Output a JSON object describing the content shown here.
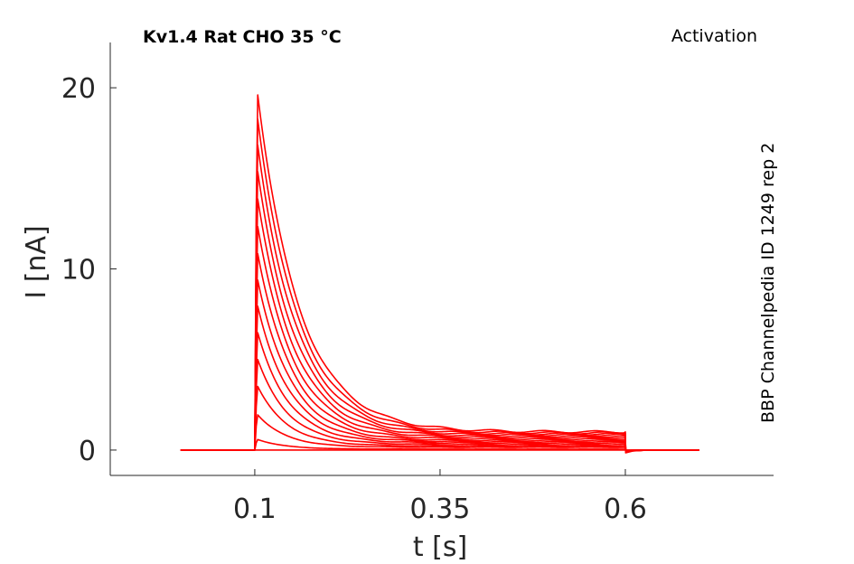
{
  "chart_data": {
    "type": "line",
    "title": "Kv1.4  Rat  CHO  35 °C",
    "protocol_label": "Activation",
    "side_label": "BBP Channelpedia ID 1249 rep 2",
    "xlabel": "t [s]",
    "ylabel": "I [nA]",
    "xlim": [
      -0.095,
      0.8
    ],
    "ylim": [
      -1.4,
      22.5
    ],
    "xticks": [
      0.1,
      0.35,
      0.6
    ],
    "xtick_labels": [
      "0.1",
      "0.35",
      "0.6"
    ],
    "yticks": [
      0,
      10,
      20
    ],
    "ytick_labels": [
      "0",
      "10",
      "20"
    ],
    "grid": false,
    "line_color": "#ff0000",
    "pulse_start": 0.1,
    "pulse_end": 0.6,
    "trace_end": 0.7,
    "series": [
      {
        "peak": 0.6,
        "sustained": 0.05
      },
      {
        "peak": 2.0,
        "sustained": 0.15
      },
      {
        "peak": 3.6,
        "sustained": 0.22
      },
      {
        "peak": 5.1,
        "sustained": 0.3
      },
      {
        "peak": 6.6,
        "sustained": 0.38
      },
      {
        "peak": 8.1,
        "sustained": 0.45
      },
      {
        "peak": 9.6,
        "sustained": 0.52
      },
      {
        "peak": 11.1,
        "sustained": 0.6
      },
      {
        "peak": 12.6,
        "sustained": 0.68
      },
      {
        "peak": 14.1,
        "sustained": 0.75
      },
      {
        "peak": 15.6,
        "sustained": 0.82
      },
      {
        "peak": 17.1,
        "sustained": 0.88
      },
      {
        "peak": 18.6,
        "sustained": 0.94
      },
      {
        "peak": 20.0,
        "sustained": 1.0
      }
    ]
  }
}
